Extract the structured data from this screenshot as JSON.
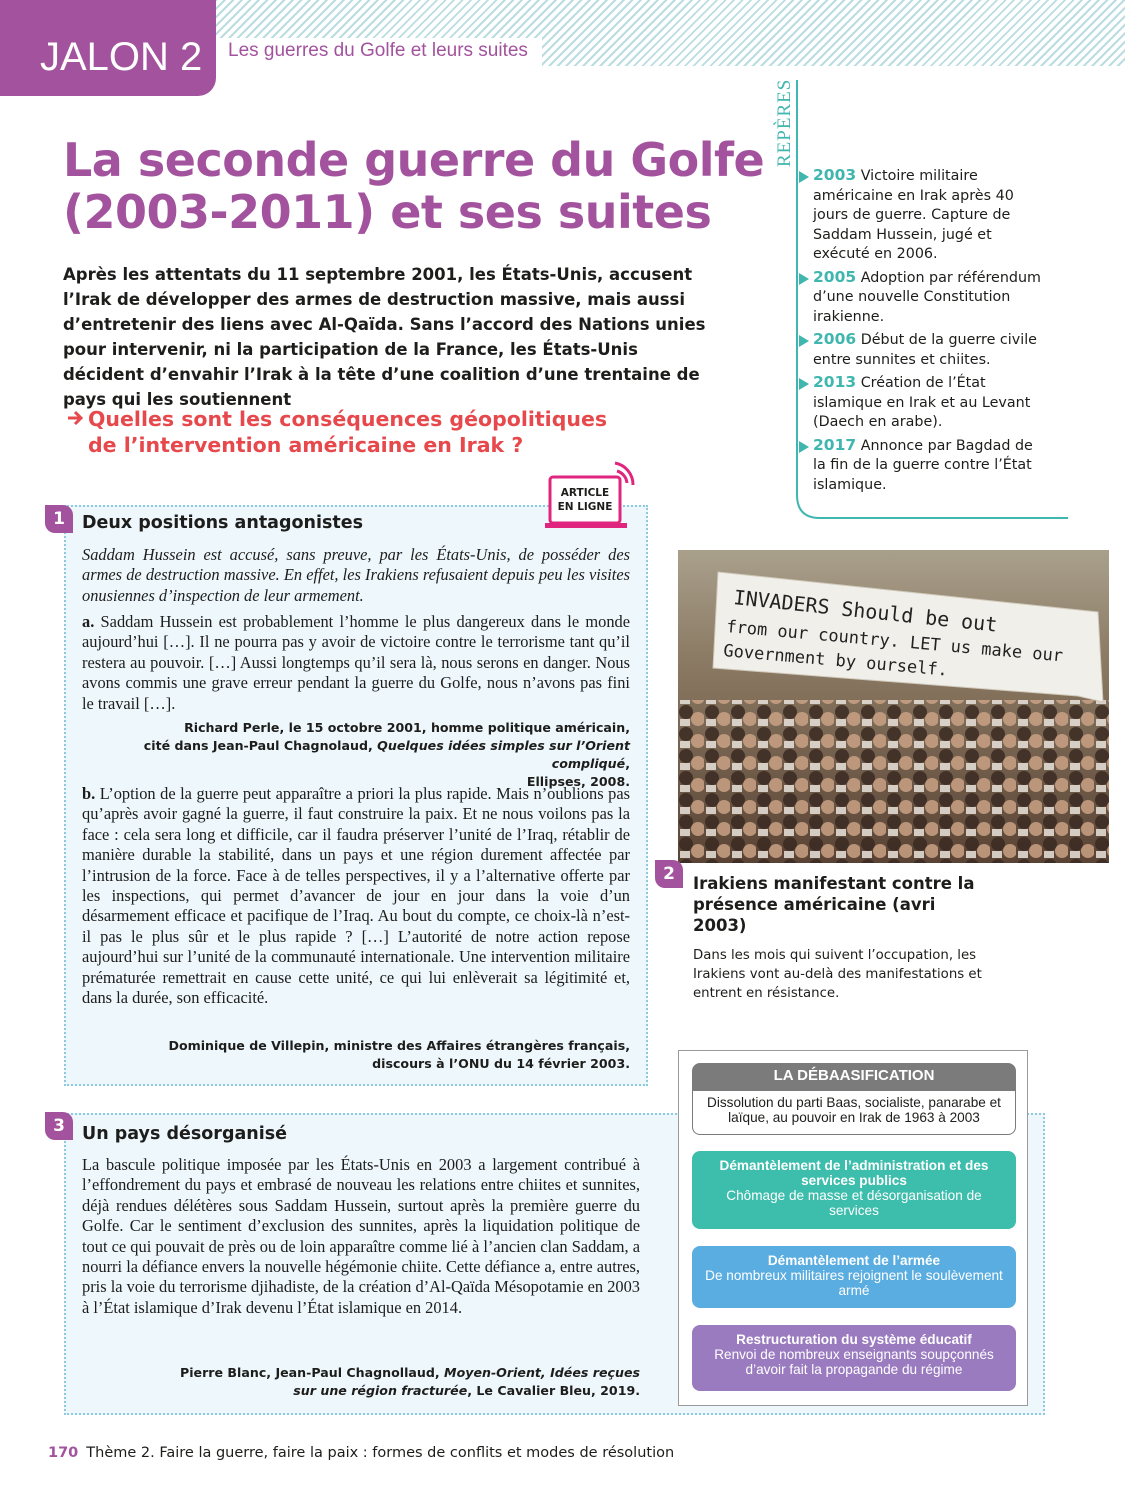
{
  "header": {
    "tab": "JALON 2",
    "subtitle": "Les guerres du Golfe et leurs suites"
  },
  "title": {
    "line1": "La seconde guerre du Golfe",
    "line2": "(2003-2011) et ses suites"
  },
  "intro": "Après les attentats du 11 septembre 2001, les États-Unis, accusent l’Irak de développer des armes de destruction massive, mais aussi d’entretenir des liens avec Al-Qaïda. Sans l’accord des Nations unies pour intervenir, ni la participation de la France, les États-Unis décident d’envahir l’Irak à la tête d’une coalition d’une trentaine de pays qui les soutiennent",
  "question": {
    "line1": "Quelles sont les conséquences géopolitiques",
    "line2": "de l’intervention américaine en Irak ?"
  },
  "reperes": {
    "heading": "REPÈRES",
    "items": [
      {
        "year": "2003",
        "text": "Victoire militaire américaine en Irak après 40 jours de guerre. Capture de Saddam Hussein, jugé et exécuté en 2006."
      },
      {
        "year": "2005",
        "text": "Adoption par référendum d’une nouvelle Constitution irakienne."
      },
      {
        "year": "2006",
        "text": "Début de la guerre civile entre sunnites et chiites."
      },
      {
        "year": "2013",
        "text": "Création de l’État islamique en Irak et au Levant (Daech en arabe)."
      },
      {
        "year": "2017",
        "text": "Annonce par Bagdad de la fin de la guerre contre l’État islamique."
      }
    ]
  },
  "doc1": {
    "number": "1",
    "badge": {
      "line1": "ARTICLE",
      "line2": "EN LIGNE"
    },
    "title": "Deux positions antagonistes",
    "intro": "Saddam Hussein est accusé, sans preuve, par les États-Unis, de posséder des armes de destruction massive. En effet, les Irakiens refusaient depuis peu les visites onusiennes d’inspection de leur armement.",
    "a": {
      "label": "a.",
      "text": "Saddam Hussein est probablement l’homme le plus dangereux dans le monde aujourd’hui […]. Il ne pourra pas y avoir de victoire contre le terrorisme tant qu’il restera au pouvoir. […] Aussi longtemps qu’il sera là, nous serons en danger. Nous avons commis une grave erreur pendant la guerre du Golfe, nous n’avons pas fini le travail […]."
    },
    "source_a": {
      "line1": "Richard Perle, le 15 octobre 2001, homme politique américain,",
      "line2a": "cité dans Jean-Paul Chagnolaud, ",
      "line2b": "Quelques idées simples sur l’Orient compliqué",
      "line2c": ",",
      "line3": "Ellipses, 2008."
    },
    "b": {
      "label": "b.",
      "text": "L’option de la guerre peut apparaître a priori la plus rapide. Mais n’oublions pas qu’après avoir gagné la guerre, il faut construire la paix. Et ne nous voilons pas la face : cela sera long et difficile, car il faudra préserver l’unité de l’Iraq, rétablir de manière durable la stabilité, dans un pays et une région durement affectée par l’intrusion de la force. Face à de telles perspectives, il y a l’alternative offerte par les inspections, qui permet d’avancer de jour en jour dans la voie d’un désarmement efficace et pacifique de l’Iraq. Au bout du compte, ce choix-là n’est-il pas le plus sûr et le plus rapide ? […] L’autorité de notre action repose aujourd’hui sur l’unité de la communauté internationale. Une intervention militaire prématurée remettrait en cause cette unité, ce qui lui enlèverait sa légitimité et, dans la durée, son efficacité."
    },
    "source_b": {
      "line1": "Dominique de Villepin,  ministre des Affaires étrangères français,",
      "line2": "discours à l’ONU du 14 février 2003."
    }
  },
  "doc2": {
    "number": "2",
    "banner": {
      "line1": "INVADERS Should be out",
      "line2": "from our country. LET us make our",
      "line3": "Government by    ourself."
    },
    "title": "Irakiens manifestant contre la présence américaine (avri 2003)",
    "caption": "Dans les mois qui suivent l’occupation, les Irakiens vont au-delà des manifestations et entrent en résistance."
  },
  "diagram": {
    "title": "LA DÉBAASIFICATION",
    "subtitle": "Dissolution du parti Baas, socialiste, panarabe et laïque, au pouvoir en Irak de 1963 à 2003",
    "boxes": [
      {
        "heading": "Démantèlement de l’administration et des services publics",
        "text": "Chômage de masse et désorganisation de services"
      },
      {
        "heading": "Démantèlement de l’armée",
        "text": "De nombreux militaires rejoignent le soulèvement armé"
      },
      {
        "heading": "Restructuration du système éducatif",
        "text": "Renvoi de nombreux enseignants soupçonnés d’avoir fait la propagande du régime"
      }
    ]
  },
  "doc3": {
    "number": "3",
    "title": "Un pays désorganisé",
    "text": "La bascule politique imposée par les États-Unis en 2003 a largement contribué à l’effondrement du pays et embrasé de nouveau les relations entre chiites et sunnites, déjà rendues délétères sous Saddam Hussein, surtout après la première guerre du Golfe. Car le sentiment d’exclusion des sunnites, après la liquidation politique de tout ce qui pouvait de près ou de loin apparaître comme lié à l’ancien clan Saddam, a nourri la défiance envers la nouvelle hégémonie chiite. Cette défiance a, entre autres, pris la voie du terrorisme djihadiste, de la création d’Al-Qaïda Mésopotamie en 2003 à l’État islamique d’Irak devenu l’État islamique en 2014.",
    "source": {
      "line1a": "Pierre Blanc, Jean-Paul Chagnollaud, ",
      "line1b": "Moyen-Orient, Idées reçues",
      "line2a": "sur une région fracturée",
      "line2b": ", Le Cavalier Bleu, 2019."
    }
  },
  "footer": {
    "page": "170",
    "text": "Thème 2. Faire la guerre, faire la paix : formes de conflits et modes de résolution"
  }
}
